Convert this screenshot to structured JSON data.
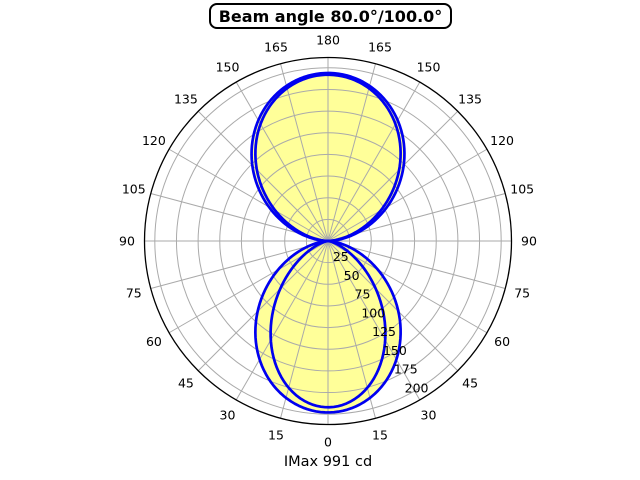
{
  "title": "Beam angle 80.0°/100.0°",
  "footer": "IMax 991 cd",
  "chart_data": {
    "type": "polar",
    "title": "Beam angle 80.0°/100.0°",
    "footer": "IMax 991 cd",
    "imax_cd": 991,
    "beam_angles_deg": [
      80.0,
      100.0
    ],
    "angle_ticks_deg": [
      0,
      15,
      30,
      45,
      60,
      75,
      90,
      105,
      120,
      135,
      150,
      165,
      180
    ],
    "angle_ticks_mirrored": true,
    "radial_ticks": [
      25,
      50,
      75,
      100,
      125,
      150,
      175,
      200
    ],
    "radial_label_angle_deg": 30,
    "radial_axis_max": 212,
    "grid": true,
    "series": [
      {
        "name": "lower-lobe-beam-100",
        "direction": "down",
        "peak": 198,
        "cosine_exponent": 1.57,
        "beam_angle_deg": 100.0,
        "filled": true
      },
      {
        "name": "lower-lobe-beam-80",
        "direction": "down",
        "peak": 192,
        "cosine_exponent": 2.6,
        "beam_angle_deg": 80.0,
        "filled": false
      },
      {
        "name": "upper-lobe-outer",
        "direction": "up",
        "peak": 194,
        "cosine_exponent": 1.3,
        "filled": true
      },
      {
        "name": "upper-lobe-inner",
        "direction": "up",
        "peak": 192,
        "cosine_exponent": 1.45,
        "filled": false
      }
    ],
    "colors": {
      "curve": "#0000F0",
      "fill": "#FFFF99",
      "grid": "#AAAAAA",
      "rim": "#000000",
      "text": "#000000",
      "background": "#FFFFFF"
    }
  }
}
